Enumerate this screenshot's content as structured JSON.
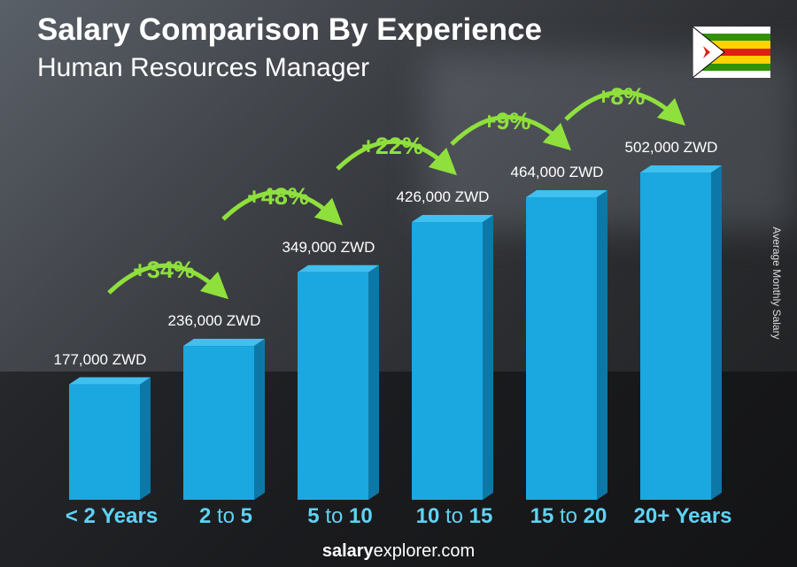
{
  "chart_data": {
    "type": "bar",
    "title": "Salary Comparison By Experience",
    "subtitle": "Human Resources Manager",
    "ylabel": "Average Monthly Salary",
    "categories": [
      [
        "<",
        "2 Years",
        ""
      ],
      [
        "2",
        " to ",
        "5"
      ],
      [
        "5",
        " to ",
        "10"
      ],
      [
        "10",
        " to ",
        "15"
      ],
      [
        "15",
        " to ",
        "20"
      ],
      [
        "20+ Years",
        "",
        ""
      ]
    ],
    "category_labels": [
      "< 2 Years",
      "2 to 5",
      "5 to 10",
      "10 to 15",
      "15 to 20",
      "20+ Years"
    ],
    "values": [
      177000,
      236000,
      349000,
      426000,
      464000,
      502000
    ],
    "value_labels": [
      "177,000 ZWD",
      "236,000 ZWD",
      "349,000 ZWD",
      "426,000 ZWD",
      "464,000 ZWD",
      "502,000 ZWD"
    ],
    "changes": [
      "+34%",
      "+48%",
      "+22%",
      "+9%",
      "+8%"
    ],
    "currency": "ZWD",
    "bar_color": "#1ba7e0",
    "change_color": "#8fe03c"
  },
  "footer": {
    "bold": "salary",
    "rest": "explorer.com"
  }
}
